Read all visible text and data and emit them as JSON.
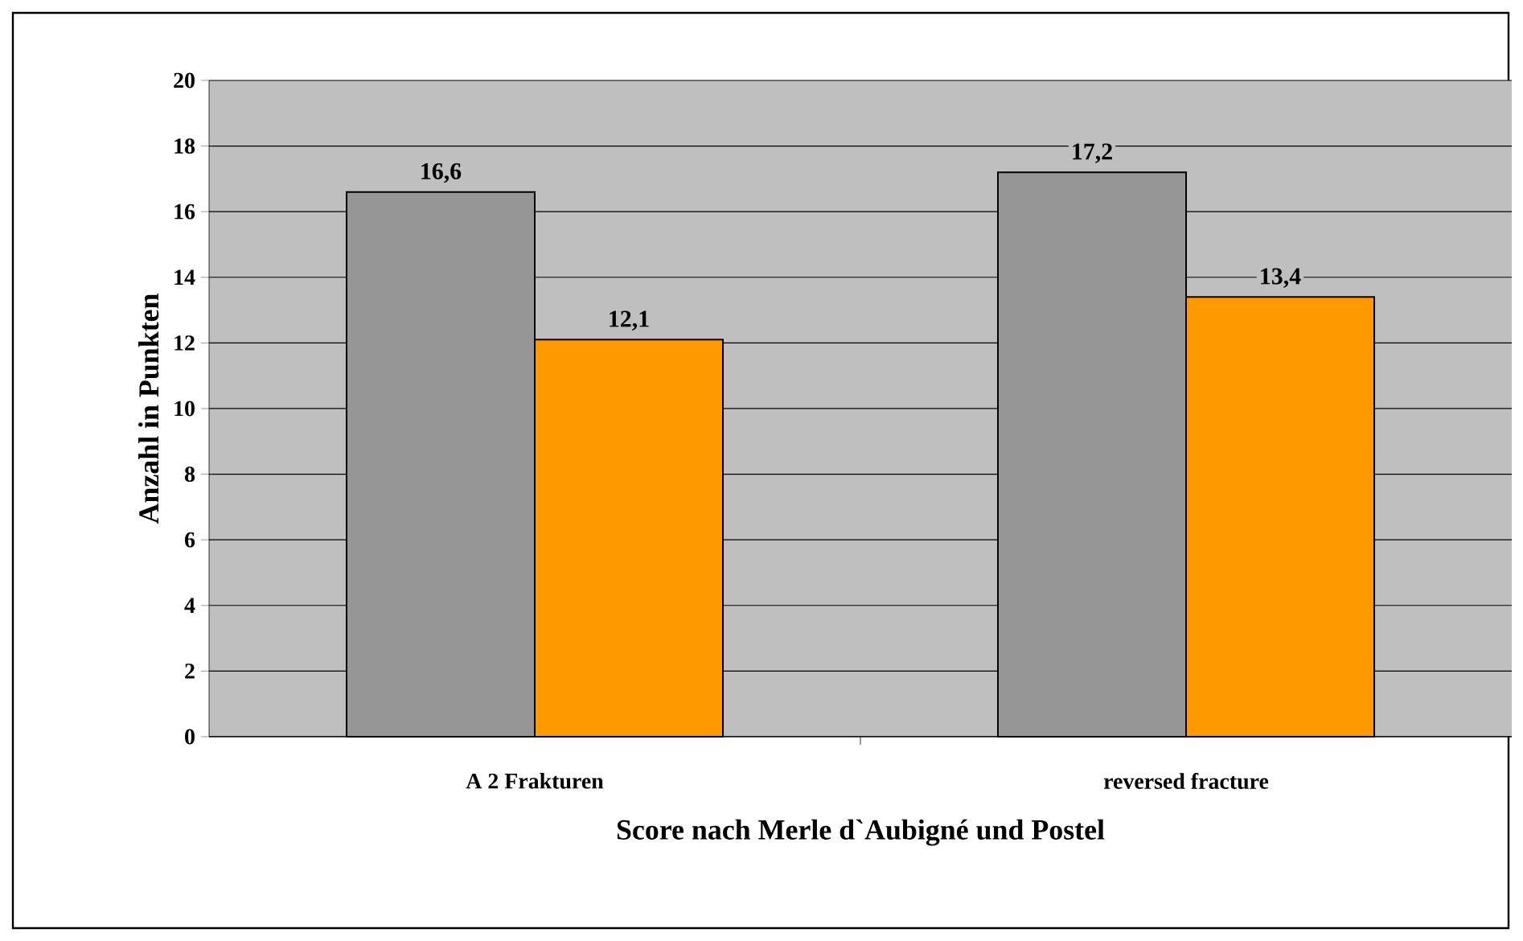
{
  "chart_data": {
    "type": "bar",
    "xlabel": "Score nach Merle d`Aubigné und Postel",
    "ylabel": "Anzahl in Punkten",
    "categories": [
      "A 2 Frakturen",
      "reversed fracture"
    ],
    "series": [
      {
        "color": "#969696",
        "values": [
          16.6,
          17.2
        ],
        "value_labels": [
          "16,6",
          "17,2"
        ]
      },
      {
        "color": "#ff9900",
        "values": [
          12.1,
          13.4
        ],
        "value_labels": [
          "12,1",
          "13,4"
        ]
      }
    ],
    "ylim": [
      0,
      20
    ],
    "yticks": [
      0,
      2,
      4,
      6,
      8,
      10,
      12,
      14,
      16,
      18,
      20
    ],
    "grid": "y"
  }
}
